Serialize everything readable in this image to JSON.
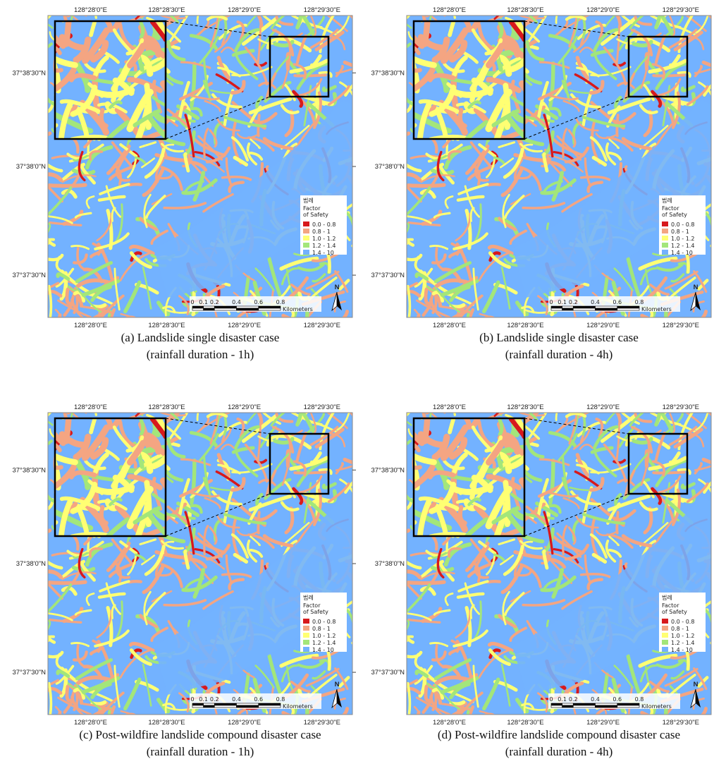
{
  "map_labels": {
    "lon": [
      "128°28'0\"E",
      "128°28'30\"E",
      "128°29'0\"E",
      "128°29'30\"E"
    ],
    "lat": [
      "37°38'30\"N",
      "37°38'0\"N",
      "37°37'30\"N"
    ]
  },
  "legend": {
    "title": "범례",
    "subtitle": [
      "Factor",
      "of Safety"
    ],
    "classes": [
      {
        "label": "0.0 - 0.8",
        "color": "#d7191c"
      },
      {
        "label": "0.8 - 1",
        "color": "#f4a582"
      },
      {
        "label": "1.0 - 1.2",
        "color": "#ffff73"
      },
      {
        "label": "1.2 - 1.4",
        "color": "#a3e67a"
      },
      {
        "label": "1.4 - 10",
        "color": "#73b2ff"
      }
    ]
  },
  "scale_bar": {
    "ticks": [
      "0",
      "0.1",
      "0.2",
      "0.4",
      "0.6",
      "0.8"
    ],
    "unit": "Kilometers"
  },
  "north": "N",
  "panels": [
    {
      "caption": [
        "(a) Landslide single disaster case",
        "(rainfall duration - 1h)"
      ]
    },
    {
      "caption": [
        "(b) Landslide single disaster case",
        "(rainfall duration - 4h)"
      ]
    },
    {
      "caption": [
        "(c) Post-wildfire landslide compound disaster case",
        "(rainfall duration - 1h)"
      ]
    },
    {
      "caption": [
        "(d) Post-wildfire landslide compound disaster case",
        "(rainfall duration - 4h)"
      ]
    }
  ]
}
